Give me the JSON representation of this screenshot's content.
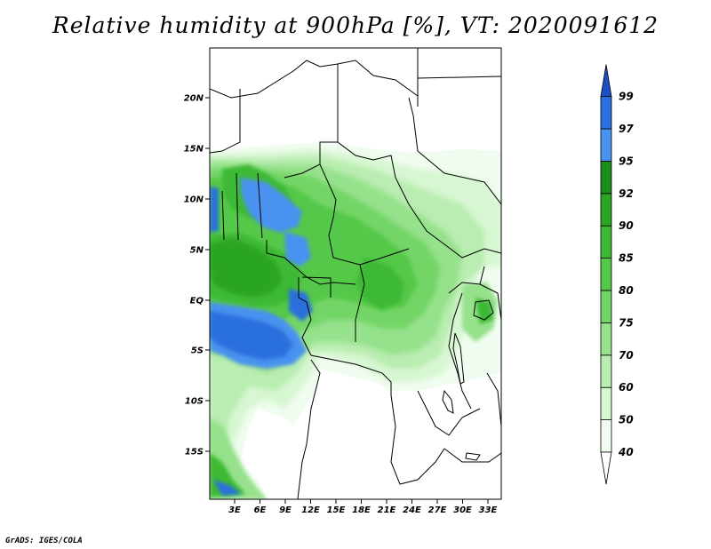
{
  "title": "Relative humidity at 900hPa [%], VT: 2020091612",
  "credit": "GrADS: IGES/COLA",
  "map": {
    "lat_labels": [
      "20N",
      "15N",
      "10N",
      "5N",
      "EQ",
      "5S",
      "10S",
      "15S"
    ],
    "lon_labels": [
      "3E",
      "6E",
      "9E",
      "12E",
      "15E",
      "18E",
      "21E",
      "24E",
      "27E",
      "30E",
      "33E"
    ]
  },
  "colorbar": {
    "levels": [
      "40",
      "50",
      "60",
      "70",
      "75",
      "80",
      "85",
      "90",
      "92",
      "95",
      "97",
      "99"
    ],
    "colors": {
      "band_40_50": "#f0fcef",
      "band_50_60": "#d7f6d2",
      "band_60_70": "#b9edb1",
      "band_70_75": "#96e18c",
      "band_75_80": "#72d566",
      "band_80_85": "#54c849",
      "band_85_90": "#3cb935",
      "band_90_92": "#2aa524",
      "band_92_95": "#1c8c1a",
      "band_95_97": "#4a92f0",
      "band_97_99": "#2a6fdd",
      "band_over_99": "#1c4fc2"
    }
  }
}
